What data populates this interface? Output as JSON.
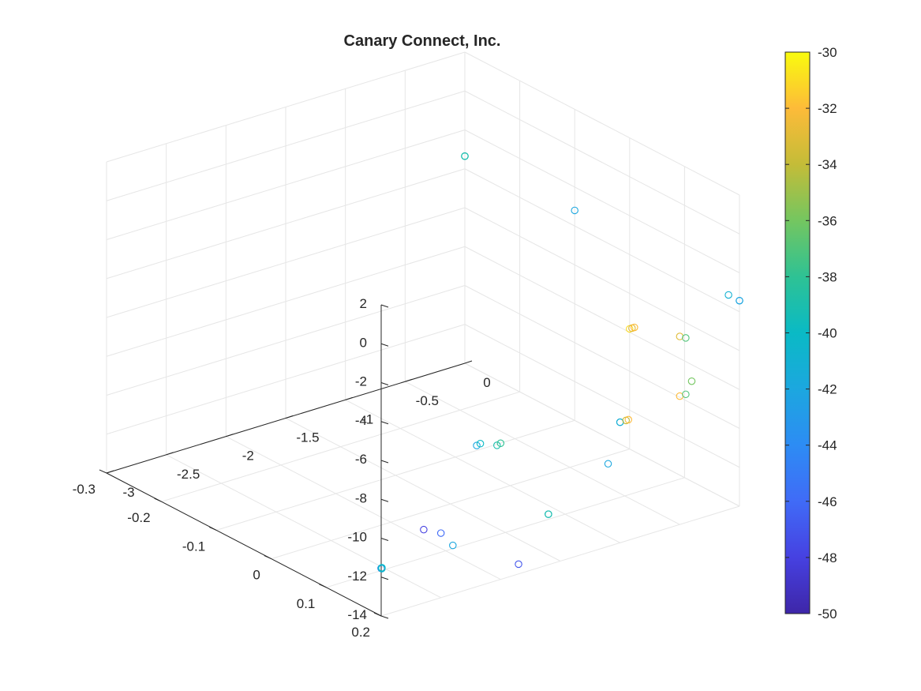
{
  "chart_data": {
    "type": "scatter",
    "title": "Canary Connect, Inc.",
    "xlabel": "",
    "ylabel": "",
    "zlabel": "",
    "grid": true,
    "marker": "open-circle",
    "axes": {
      "x": {
        "lim": [
          -3,
          0
        ],
        "ticks": [
          -3,
          -2.5,
          -2,
          -1.5,
          -1,
          -0.5,
          0
        ],
        "tick_labels": [
          "-3",
          "-2.5",
          "-2",
          "-1.5",
          "-1",
          "-0.5",
          "0"
        ]
      },
      "y": {
        "lim": [
          -0.3,
          0.2
        ],
        "ticks": [
          -0.3,
          -0.2,
          -0.1,
          0,
          0.1,
          0.2
        ],
        "tick_labels": [
          "-0.3",
          "-0.2",
          "-0.1",
          "0",
          "0.1",
          "0.2"
        ]
      },
      "z": {
        "lim": [
          -14,
          2
        ],
        "ticks": [
          -14,
          -12,
          -10,
          -8,
          -6,
          -4,
          -2,
          0,
          2
        ],
        "tick_labels": [
          "-14",
          "-12",
          "-10",
          "-8",
          "-6",
          "-4",
          "-2",
          "0",
          "2"
        ]
      }
    },
    "colorbar": {
      "range": [
        -50,
        -30
      ],
      "ticks": [
        -50,
        -48,
        -46,
        -44,
        -42,
        -40,
        -38,
        -36,
        -34,
        -32,
        -30
      ],
      "tick_labels": [
        "-50",
        "-48",
        "-46",
        "-44",
        "-42",
        "-40",
        "-38",
        "-36",
        "-34",
        "-32",
        "-30"
      ],
      "colormap": "parula",
      "location": "right"
    },
    "points": [
      {
        "x": -3.0,
        "y": 0.2,
        "z": -11.55,
        "c": -47
      },
      {
        "x": -3.0,
        "y": 0.2,
        "z": -11.55,
        "c": -45
      },
      {
        "x": -3.0,
        "y": 0.2,
        "z": -11.55,
        "c": -43
      },
      {
        "x": -2.99,
        "y": 0.199,
        "z": -11.6,
        "c": -41
      },
      {
        "x": -2.98,
        "y": 0.197,
        "z": -11.6,
        "c": -40
      },
      {
        "x": -2.5,
        "y": 0.2,
        "z": -10.68,
        "c": -46
      },
      {
        "x": -2.4,
        "y": 0.2,
        "z": -11.5,
        "c": -42
      },
      {
        "x": -2.2,
        "y": 0.2,
        "z": -6.74,
        "c": -42
      },
      {
        "x": -2.17,
        "y": 0.2,
        "z": -6.7,
        "c": -40
      },
      {
        "x": -2.03,
        "y": 0.2,
        "z": -7.05,
        "c": -39
      },
      {
        "x": -2.0,
        "y": 0.2,
        "z": -7.0,
        "c": -38
      },
      {
        "x": -1.85,
        "y": 0.2,
        "z": -13.5,
        "c": -47
      },
      {
        "x": -2.0,
        "y": 0.06,
        "z": -13.5,
        "c": -48
      },
      {
        "x": -1.6,
        "y": 0.2,
        "z": -11.4,
        "c": -41
      },
      {
        "x": -1.6,
        "y": 0.2,
        "z": -11.4,
        "c": -39
      },
      {
        "x": -1.1,
        "y": 0.2,
        "z": -9.75,
        "c": -42
      },
      {
        "x": -1.0,
        "y": 0.2,
        "z": -7.8,
        "c": -43
      },
      {
        "x": -1.0,
        "y": 0.2,
        "z": -7.8,
        "c": -41
      },
      {
        "x": -0.95,
        "y": 0.2,
        "z": -7.8,
        "c": -34
      },
      {
        "x": -0.93,
        "y": 0.2,
        "z": -7.8,
        "c": -32
      },
      {
        "x": -0.5,
        "y": 0.2,
        "z": -7.4,
        "c": -32
      },
      {
        "x": -0.45,
        "y": 0.2,
        "z": -7.4,
        "c": -37
      },
      {
        "x": -0.5,
        "y": 0.2,
        "z": -4.33,
        "c": -33
      },
      {
        "x": -0.45,
        "y": 0.2,
        "z": -4.5,
        "c": -37
      },
      {
        "x": -0.4,
        "y": 0.2,
        "z": -6.82,
        "c": -36
      },
      {
        "x": 0.0,
        "y": 0.2,
        "z": -3.43,
        "c": -43
      },
      {
        "x": 0.0,
        "y": 0.2,
        "z": -3.43,
        "c": -42
      },
      {
        "x": 0.0,
        "y": 0.18,
        "z": -3.43,
        "c": -41
      },
      {
        "x": -0.92,
        "y": 0.2,
        "z": -3.15,
        "c": -31
      },
      {
        "x": -0.9,
        "y": 0.2,
        "z": -3.15,
        "c": -33
      },
      {
        "x": -0.88,
        "y": 0.2,
        "z": -3.15,
        "c": -32
      },
      {
        "x": 0.0,
        "y": -0.1,
        "z": -3.2,
        "c": -42
      },
      {
        "x": 0.0,
        "y": -0.3,
        "z": -3.35,
        "c": -38
      },
      {
        "x": 0.0,
        "y": -0.3,
        "z": -3.35,
        "c": -40
      },
      {
        "x": 0.0,
        "y": -0.3,
        "z": -3.35,
        "c": -39
      }
    ]
  }
}
